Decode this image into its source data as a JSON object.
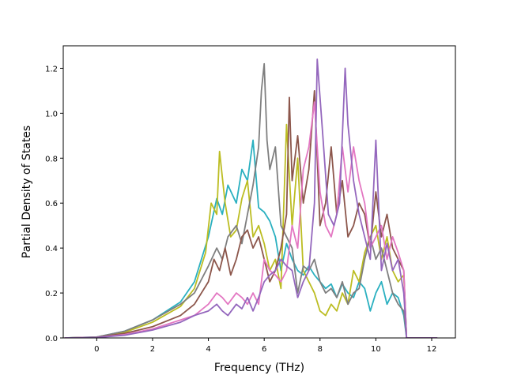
{
  "chart_data": {
    "type": "line",
    "title": "",
    "xlabel": "Frequency (THz)",
    "ylabel": "Partial Density of States",
    "xlim": [
      -1.2,
      12.85
    ],
    "ylim": [
      0.0,
      1.3
    ],
    "xticks": [
      0,
      2,
      4,
      6,
      8,
      10,
      12
    ],
    "xtick_labels": [
      "0",
      "2",
      "4",
      "6",
      "8",
      "10",
      "12"
    ],
    "yticks": [
      0.0,
      0.2,
      0.4,
      0.6,
      0.8,
      1.0,
      1.2
    ],
    "ytick_labels": [
      "0.0",
      "0.2",
      "0.4",
      "0.6",
      "0.8",
      "1.0",
      "1.2"
    ],
    "grid": false,
    "legend": "none",
    "series": [
      {
        "color": "#2ab0c0",
        "x": [
          -1.15,
          0,
          1,
          2,
          3,
          3.5,
          4,
          4.3,
          4.5,
          4.7,
          5,
          5.2,
          5.4,
          5.6,
          5.8,
          6,
          6.2,
          6.4,
          6.6,
          6.8,
          7,
          7.2,
          7.4,
          7.6,
          7.8,
          8,
          8.2,
          8.4,
          8.6,
          8.8,
          9,
          9.2,
          9.4,
          9.6,
          9.8,
          10,
          10.2,
          10.4,
          10.6,
          10.8,
          11,
          11.1,
          12.2
        ],
        "y": [
          0,
          0.004,
          0.03,
          0.08,
          0.16,
          0.25,
          0.45,
          0.62,
          0.55,
          0.68,
          0.6,
          0.75,
          0.7,
          0.88,
          0.58,
          0.56,
          0.52,
          0.45,
          0.3,
          0.42,
          0.35,
          0.3,
          0.28,
          0.32,
          0.28,
          0.25,
          0.22,
          0.24,
          0.18,
          0.24,
          0.2,
          0.18,
          0.25,
          0.22,
          0.12,
          0.2,
          0.25,
          0.15,
          0.2,
          0.18,
          0.1,
          0,
          0
        ]
      },
      {
        "color": "#bcbd22",
        "x": [
          -1.15,
          0,
          1,
          2,
          3,
          3.5,
          3.9,
          4.1,
          4.3,
          4.4,
          4.6,
          4.8,
          5,
          5.2,
          5.4,
          5.6,
          5.8,
          6,
          6.2,
          6.4,
          6.6,
          6.8,
          7,
          7.2,
          7.4,
          7.6,
          7.8,
          8,
          8.2,
          8.4,
          8.6,
          8.8,
          9,
          9.2,
          9.4,
          9.6,
          9.8,
          10,
          10.2,
          10.4,
          10.6,
          10.8,
          11,
          11.1,
          12.2
        ],
        "y": [
          0,
          0.003,
          0.025,
          0.07,
          0.14,
          0.22,
          0.38,
          0.6,
          0.55,
          0.83,
          0.6,
          0.45,
          0.48,
          0.62,
          0.7,
          0.45,
          0.5,
          0.42,
          0.3,
          0.35,
          0.22,
          0.95,
          0.5,
          0.8,
          0.3,
          0.25,
          0.2,
          0.12,
          0.1,
          0.15,
          0.12,
          0.2,
          0.15,
          0.3,
          0.25,
          0.38,
          0.45,
          0.5,
          0.35,
          0.45,
          0.3,
          0.25,
          0.28,
          0,
          0
        ]
      },
      {
        "color": "#7f7f7f",
        "x": [
          -1.15,
          0,
          1,
          2,
          3,
          3.5,
          4,
          4.3,
          4.5,
          4.7,
          5,
          5.2,
          5.4,
          5.6,
          5.8,
          5.9,
          6,
          6.1,
          6.2,
          6.4,
          6.6,
          6.8,
          7,
          7.2,
          7.4,
          7.6,
          7.8,
          8,
          8.2,
          8.4,
          8.6,
          8.8,
          9,
          9.2,
          9.4,
          9.6,
          9.8,
          10,
          10.2,
          10.4,
          10.6,
          10.8,
          11,
          11.1,
          12.2
        ],
        "y": [
          0,
          0.004,
          0.03,
          0.08,
          0.15,
          0.2,
          0.32,
          0.4,
          0.35,
          0.45,
          0.5,
          0.42,
          0.55,
          0.68,
          0.85,
          1.1,
          1.22,
          0.88,
          0.75,
          0.85,
          0.5,
          0.45,
          0.4,
          0.2,
          0.32,
          0.3,
          0.35,
          0.25,
          0.2,
          0.22,
          0.18,
          0.25,
          0.15,
          0.2,
          0.22,
          0.35,
          0.45,
          0.35,
          0.4,
          0.3,
          0.2,
          0.15,
          0.12,
          0,
          0
        ]
      },
      {
        "color": "#8c564b",
        "x": [
          -1.15,
          0,
          1,
          2,
          3,
          3.5,
          4,
          4.2,
          4.4,
          4.6,
          4.8,
          5,
          5.2,
          5.4,
          5.6,
          5.8,
          6,
          6.2,
          6.4,
          6.6,
          6.8,
          6.9,
          7,
          7.2,
          7.4,
          7.6,
          7.8,
          8,
          8.2,
          8.4,
          8.6,
          8.8,
          9,
          9.2,
          9.4,
          9.6,
          9.8,
          10,
          10.2,
          10.4,
          10.6,
          10.8,
          11,
          11.1,
          12.2
        ],
        "y": [
          0,
          0.003,
          0.02,
          0.05,
          0.1,
          0.15,
          0.25,
          0.35,
          0.3,
          0.4,
          0.28,
          0.35,
          0.45,
          0.48,
          0.4,
          0.45,
          0.35,
          0.25,
          0.3,
          0.4,
          0.55,
          1.07,
          0.7,
          0.9,
          0.6,
          0.75,
          1.1,
          0.5,
          0.6,
          0.85,
          0.55,
          0.7,
          0.45,
          0.5,
          0.6,
          0.55,
          0.4,
          0.65,
          0.45,
          0.55,
          0.4,
          0.35,
          0.3,
          0,
          0
        ]
      },
      {
        "color": "#e377c2",
        "x": [
          -1.15,
          0,
          1,
          2,
          3,
          3.5,
          4,
          4.3,
          4.5,
          4.7,
          5,
          5.2,
          5.4,
          5.6,
          5.8,
          6,
          6.2,
          6.4,
          6.6,
          6.8,
          7,
          7.2,
          7.4,
          7.6,
          7.8,
          8,
          8.2,
          8.4,
          8.6,
          8.8,
          9,
          9.2,
          9.4,
          9.6,
          9.8,
          10,
          10.2,
          10.4,
          10.6,
          10.8,
          11,
          11.1,
          12.2
        ],
        "y": [
          0,
          0.002,
          0.015,
          0.04,
          0.08,
          0.1,
          0.15,
          0.2,
          0.18,
          0.15,
          0.2,
          0.18,
          0.15,
          0.2,
          0.15,
          0.35,
          0.3,
          0.28,
          0.25,
          0.3,
          0.5,
          0.4,
          0.75,
          0.85,
          1.05,
          0.65,
          0.5,
          0.45,
          0.55,
          0.85,
          0.65,
          0.85,
          0.7,
          0.6,
          0.4,
          0.45,
          0.5,
          0.35,
          0.45,
          0.38,
          0.3,
          0,
          0
        ]
      },
      {
        "color": "#9467bd",
        "x": [
          -1.15,
          0,
          1,
          2,
          3,
          3.5,
          4,
          4.3,
          4.5,
          4.7,
          5,
          5.2,
          5.4,
          5.6,
          5.8,
          6,
          6.2,
          6.4,
          6.6,
          6.8,
          7,
          7.2,
          7.4,
          7.6,
          7.8,
          7.9,
          8.1,
          8.3,
          8.5,
          8.7,
          8.9,
          9,
          9.2,
          9.4,
          9.6,
          9.8,
          10,
          10.2,
          10.4,
          10.6,
          10.8,
          11,
          11.1,
          12.2
        ],
        "y": [
          0,
          0.002,
          0.012,
          0.035,
          0.07,
          0.1,
          0.12,
          0.15,
          0.12,
          0.1,
          0.15,
          0.13,
          0.18,
          0.12,
          0.18,
          0.25,
          0.28,
          0.3,
          0.35,
          0.32,
          0.3,
          0.18,
          0.25,
          0.3,
          0.6,
          1.24,
          0.9,
          0.55,
          0.5,
          0.6,
          1.2,
          0.95,
          0.7,
          0.55,
          0.45,
          0.35,
          0.88,
          0.3,
          0.42,
          0.3,
          0.35,
          0.2,
          0,
          0
        ]
      }
    ]
  }
}
